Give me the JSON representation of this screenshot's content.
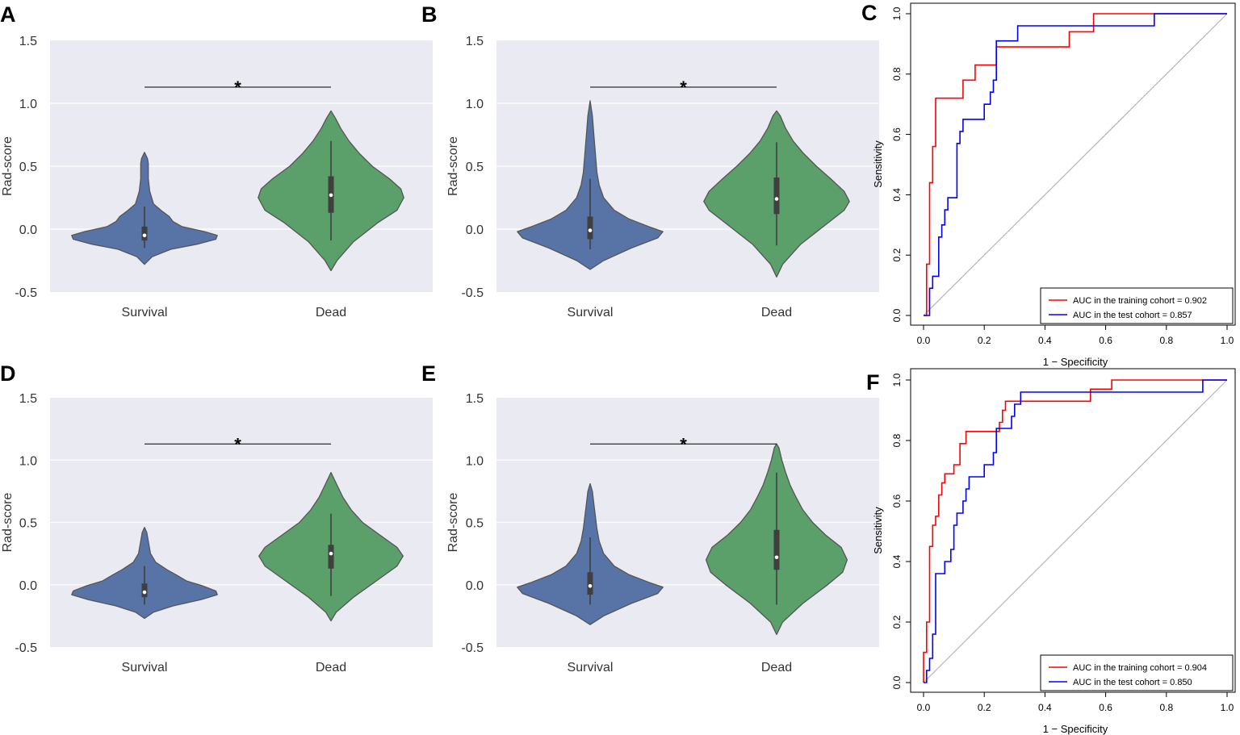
{
  "figure": {
    "violin_panels": [
      {
        "letter": "A",
        "ylabel": "Rad-score",
        "yticks": [
          "-0.5",
          "0.0",
          "0.5",
          "1.0",
          "1.5"
        ],
        "categories": [
          "Survival",
          "Dead"
        ],
        "significance": "*"
      },
      {
        "letter": "B",
        "ylabel": "Rad-score",
        "yticks": [
          "-0.5",
          "0.0",
          "0.5",
          "1.0",
          "1.5"
        ],
        "categories": [
          "Survival",
          "Dead"
        ],
        "significance": "*"
      },
      {
        "letter": "D",
        "ylabel": "Rad-score",
        "yticks": [
          "-0.5",
          "0.0",
          "0.5",
          "1.0",
          "1.5"
        ],
        "categories": [
          "Survival",
          "Dead"
        ],
        "significance": "*"
      },
      {
        "letter": "E",
        "ylabel": "Rad-score",
        "yticks": [
          "-0.5",
          "0.0",
          "0.5",
          "1.0",
          "1.5"
        ],
        "categories": [
          "Survival",
          "Dead"
        ],
        "significance": "*"
      }
    ],
    "roc_panels": [
      {
        "letter": "C",
        "xlabel": "1 − Specificity",
        "ylabel": "Sensitivity",
        "xticks": [
          "0.0",
          "0.2",
          "0.4",
          "0.6",
          "0.8",
          "1.0"
        ],
        "yticks": [
          "0.0",
          "0.2",
          "0.4",
          "0.6",
          "0.8",
          "1.0"
        ],
        "legend": [
          "AUC in the training cohort = 0.902",
          "AUC in the test cohort = 0.857"
        ]
      },
      {
        "letter": "F",
        "xlabel": "1 − Specificity",
        "ylabel": "Sensitivity",
        "xticks": [
          "0.0",
          "0.2",
          "0.4",
          "0.6",
          "0.8",
          "1.0"
        ],
        "yticks": [
          "0.0",
          "0.2",
          "0.4",
          "0.6",
          "0.8",
          "1.0"
        ],
        "legend": [
          "AUC in the training cohort = 0.904",
          "AUC in the test cohort = 0.850"
        ]
      }
    ]
  },
  "colors": {
    "survival": "#5874a7",
    "dead": "#5b9f6a",
    "violin_outline": "#555555",
    "panel_bg": "#eaeaf2",
    "training": "#ff0000",
    "test": "#0000ff",
    "diagonal": "#b4b4b4"
  },
  "chart_data": [
    {
      "panel": "A",
      "type": "violin",
      "ylabel": "Rad-score",
      "ylim": [
        -0.5,
        1.5
      ],
      "categories": [
        "Survival",
        "Dead"
      ],
      "violins": [
        {
          "name": "Survival",
          "profile": [
            [
              -0.28,
              0.0
            ],
            [
              -0.22,
              0.1
            ],
            [
              -0.16,
              0.35
            ],
            [
              -0.12,
              0.7
            ],
            [
              -0.08,
              0.95
            ],
            [
              -0.05,
              0.97
            ],
            [
              -0.02,
              0.8
            ],
            [
              0.02,
              0.5
            ],
            [
              0.06,
              0.38
            ],
            [
              0.1,
              0.33
            ],
            [
              0.14,
              0.24
            ],
            [
              0.2,
              0.12
            ],
            [
              0.3,
              0.07
            ],
            [
              0.4,
              0.05
            ],
            [
              0.48,
              0.05
            ],
            [
              0.52,
              0.05
            ],
            [
              0.56,
              0.04
            ],
            [
              0.61,
              0.0
            ]
          ],
          "box": {
            "q1": -0.09,
            "q3": 0.02,
            "median": -0.05,
            "whisker_low": -0.15,
            "whisker_high": 0.18
          }
        },
        {
          "name": "Dead",
          "profile": [
            [
              -0.33,
              0.0
            ],
            [
              -0.25,
              0.08
            ],
            [
              -0.1,
              0.3
            ],
            [
              0.05,
              0.62
            ],
            [
              0.15,
              0.88
            ],
            [
              0.25,
              0.97
            ],
            [
              0.32,
              0.93
            ],
            [
              0.4,
              0.78
            ],
            [
              0.5,
              0.55
            ],
            [
              0.6,
              0.38
            ],
            [
              0.7,
              0.24
            ],
            [
              0.8,
              0.13
            ],
            [
              0.88,
              0.06
            ],
            [
              0.94,
              0.0
            ]
          ],
          "box": {
            "q1": 0.13,
            "q3": 0.42,
            "median": 0.27,
            "whisker_low": -0.09,
            "whisker_high": 0.7
          }
        }
      ],
      "significance": "*"
    },
    {
      "panel": "B",
      "type": "violin",
      "ylabel": "Rad-score",
      "ylim": [
        -0.5,
        1.5
      ],
      "categories": [
        "Survival",
        "Dead"
      ],
      "violins": [
        {
          "name": "Survival",
          "profile": [
            [
              -0.32,
              0.0
            ],
            [
              -0.25,
              0.18
            ],
            [
              -0.15,
              0.55
            ],
            [
              -0.07,
              0.9
            ],
            [
              -0.02,
              0.97
            ],
            [
              0.02,
              0.78
            ],
            [
              0.08,
              0.52
            ],
            [
              0.15,
              0.32
            ],
            [
              0.25,
              0.18
            ],
            [
              0.35,
              0.12
            ],
            [
              0.45,
              0.09
            ],
            [
              0.6,
              0.07
            ],
            [
              0.75,
              0.05
            ],
            [
              0.9,
              0.03
            ],
            [
              1.02,
              0.0
            ]
          ],
          "box": {
            "q1": -0.08,
            "q3": 0.1,
            "median": -0.01,
            "whisker_low": -0.16,
            "whisker_high": 0.4
          }
        },
        {
          "name": "Dead",
          "profile": [
            [
              -0.38,
              0.0
            ],
            [
              -0.28,
              0.08
            ],
            [
              -0.12,
              0.32
            ],
            [
              0.02,
              0.62
            ],
            [
              0.15,
              0.9
            ],
            [
              0.22,
              0.97
            ],
            [
              0.3,
              0.9
            ],
            [
              0.4,
              0.72
            ],
            [
              0.5,
              0.53
            ],
            [
              0.6,
              0.36
            ],
            [
              0.7,
              0.22
            ],
            [
              0.8,
              0.12
            ],
            [
              0.9,
              0.05
            ],
            [
              0.94,
              0.0
            ]
          ],
          "box": {
            "q1": 0.12,
            "q3": 0.41,
            "median": 0.24,
            "whisker_low": -0.13,
            "whisker_high": 0.69
          }
        }
      ],
      "significance": "*"
    },
    {
      "panel": "C",
      "type": "line",
      "title": "",
      "xlabel": "1 − Specificity",
      "ylabel": "Sensitivity",
      "xlim": [
        0,
        1
      ],
      "ylim": [
        0,
        1
      ],
      "series": [
        {
          "name": "AUC in the training cohort = 0.902",
          "x": [
            0,
            0.01,
            0.01,
            0.02,
            0.02,
            0.03,
            0.03,
            0.04,
            0.04,
            0.09,
            0.09,
            0.13,
            0.13,
            0.17,
            0.17,
            0.21,
            0.21,
            0.24,
            0.24,
            0.48,
            0.48,
            0.56,
            0.56,
            1.0
          ],
          "y": [
            0,
            0,
            0.17,
            0.17,
            0.44,
            0.44,
            0.56,
            0.56,
            0.72,
            0.72,
            0.72,
            0.72,
            0.78,
            0.78,
            0.83,
            0.83,
            0.83,
            0.83,
            0.89,
            0.89,
            0.94,
            0.94,
            1.0,
            1.0
          ]
        },
        {
          "name": "AUC in the test cohort = 0.857",
          "x": [
            0,
            0.02,
            0.02,
            0.03,
            0.03,
            0.05,
            0.05,
            0.06,
            0.06,
            0.07,
            0.07,
            0.08,
            0.08,
            0.11,
            0.11,
            0.12,
            0.12,
            0.13,
            0.13,
            0.15,
            0.15,
            0.2,
            0.2,
            0.22,
            0.22,
            0.23,
            0.23,
            0.24,
            0.24,
            0.31,
            0.31,
            0.76,
            0.76,
            1.0
          ],
          "y": [
            0,
            0,
            0.09,
            0.09,
            0.13,
            0.13,
            0.26,
            0.26,
            0.3,
            0.3,
            0.35,
            0.35,
            0.39,
            0.39,
            0.57,
            0.57,
            0.61,
            0.61,
            0.65,
            0.65,
            0.65,
            0.65,
            0.7,
            0.7,
            0.74,
            0.74,
            0.78,
            0.78,
            0.91,
            0.91,
            0.96,
            0.96,
            1.0,
            1.0
          ]
        }
      ],
      "diagonal": true
    },
    {
      "panel": "D",
      "type": "violin",
      "ylabel": "Rad-score",
      "ylim": [
        -0.5,
        1.5
      ],
      "categories": [
        "Survival",
        "Dead"
      ],
      "violins": [
        {
          "name": "Survival",
          "profile": [
            [
              -0.27,
              0.0
            ],
            [
              -0.22,
              0.12
            ],
            [
              -0.17,
              0.38
            ],
            [
              -0.12,
              0.75
            ],
            [
              -0.08,
              0.97
            ],
            [
              -0.05,
              0.95
            ],
            [
              -0.01,
              0.78
            ],
            [
              0.03,
              0.56
            ],
            [
              0.08,
              0.42
            ],
            [
              0.12,
              0.3
            ],
            [
              0.18,
              0.15
            ],
            [
              0.25,
              0.08
            ],
            [
              0.35,
              0.05
            ],
            [
              0.42,
              0.03
            ],
            [
              0.46,
              0.0
            ]
          ],
          "box": {
            "q1": -0.1,
            "q3": 0.01,
            "median": -0.06,
            "whisker_low": -0.16,
            "whisker_high": 0.15
          }
        },
        {
          "name": "Dead",
          "profile": [
            [
              -0.29,
              0.0
            ],
            [
              -0.22,
              0.07
            ],
            [
              -0.1,
              0.3
            ],
            [
              0.05,
              0.65
            ],
            [
              0.15,
              0.88
            ],
            [
              0.23,
              0.96
            ],
            [
              0.3,
              0.88
            ],
            [
              0.4,
              0.65
            ],
            [
              0.5,
              0.42
            ],
            [
              0.6,
              0.27
            ],
            [
              0.7,
              0.16
            ],
            [
              0.8,
              0.08
            ],
            [
              0.9,
              0.0
            ]
          ],
          "box": {
            "q1": 0.13,
            "q3": 0.32,
            "median": 0.25,
            "whisker_low": -0.09,
            "whisker_high": 0.57
          }
        }
      ],
      "significance": "*"
    },
    {
      "panel": "E",
      "type": "violin",
      "ylabel": "Rad-score",
      "ylim": [
        -0.5,
        1.5
      ],
      "categories": [
        "Survival",
        "Dead"
      ],
      "violins": [
        {
          "name": "Survival",
          "profile": [
            [
              -0.32,
              0.0
            ],
            [
              -0.25,
              0.18
            ],
            [
              -0.15,
              0.55
            ],
            [
              -0.07,
              0.9
            ],
            [
              -0.02,
              0.97
            ],
            [
              0.02,
              0.78
            ],
            [
              0.08,
              0.52
            ],
            [
              0.15,
              0.32
            ],
            [
              0.25,
              0.18
            ],
            [
              0.35,
              0.12
            ],
            [
              0.45,
              0.09
            ],
            [
              0.55,
              0.07
            ],
            [
              0.65,
              0.05
            ],
            [
              0.75,
              0.03
            ],
            [
              0.81,
              0.0
            ]
          ],
          "box": {
            "q1": -0.08,
            "q3": 0.1,
            "median": -0.01,
            "whisker_low": -0.16,
            "whisker_high": 0.38
          }
        },
        {
          "name": "Dead",
          "profile": [
            [
              -0.4,
              0.0
            ],
            [
              -0.3,
              0.08
            ],
            [
              -0.15,
              0.35
            ],
            [
              0.0,
              0.68
            ],
            [
              0.1,
              0.88
            ],
            [
              0.2,
              0.94
            ],
            [
              0.3,
              0.86
            ],
            [
              0.4,
              0.65
            ],
            [
              0.5,
              0.48
            ],
            [
              0.6,
              0.35
            ],
            [
              0.7,
              0.26
            ],
            [
              0.8,
              0.18
            ],
            [
              0.9,
              0.12
            ],
            [
              1.0,
              0.07
            ],
            [
              1.1,
              0.03
            ],
            [
              1.13,
              0.0
            ]
          ],
          "box": {
            "q1": 0.12,
            "q3": 0.44,
            "median": 0.22,
            "whisker_low": -0.16,
            "whisker_high": 0.9
          }
        }
      ],
      "significance": "*"
    },
    {
      "panel": "F",
      "type": "line",
      "title": "",
      "xlabel": "1 − Specificity",
      "ylabel": "Sensitivity",
      "xlim": [
        0,
        1
      ],
      "ylim": [
        0,
        1
      ],
      "series": [
        {
          "name": "AUC in the training cohort = 0.904",
          "x": [
            0,
            0,
            0.01,
            0.01,
            0.02,
            0.02,
            0.03,
            0.03,
            0.04,
            0.04,
            0.05,
            0.05,
            0.06,
            0.06,
            0.07,
            0.07,
            0.09,
            0.09,
            0.1,
            0.1,
            0.12,
            0.12,
            0.14,
            0.14,
            0.25,
            0.25,
            0.26,
            0.26,
            0.27,
            0.27,
            0.28,
            0.28,
            0.55,
            0.55,
            0.62,
            0.62,
            1.0
          ],
          "y": [
            0,
            0.1,
            0.1,
            0.2,
            0.2,
            0.45,
            0.45,
            0.52,
            0.52,
            0.55,
            0.55,
            0.62,
            0.62,
            0.66,
            0.66,
            0.69,
            0.69,
            0.69,
            0.69,
            0.72,
            0.72,
            0.79,
            0.79,
            0.83,
            0.83,
            0.86,
            0.86,
            0.9,
            0.9,
            0.93,
            0.93,
            0.93,
            0.93,
            0.97,
            0.97,
            1.0,
            1.0
          ]
        },
        {
          "name": "AUC in the test cohort = 0.850",
          "x": [
            0,
            0.01,
            0.01,
            0.02,
            0.02,
            0.03,
            0.03,
            0.04,
            0.04,
            0.07,
            0.07,
            0.09,
            0.09,
            0.1,
            0.1,
            0.11,
            0.11,
            0.13,
            0.13,
            0.14,
            0.14,
            0.15,
            0.15,
            0.2,
            0.2,
            0.23,
            0.23,
            0.24,
            0.24,
            0.29,
            0.29,
            0.3,
            0.3,
            0.31,
            0.31,
            0.32,
            0.32,
            0.92,
            0.92,
            1.0
          ],
          "y": [
            0,
            0,
            0.04,
            0.04,
            0.08,
            0.08,
            0.16,
            0.16,
            0.36,
            0.36,
            0.4,
            0.4,
            0.44,
            0.44,
            0.52,
            0.52,
            0.56,
            0.56,
            0.6,
            0.6,
            0.64,
            0.64,
            0.68,
            0.68,
            0.72,
            0.72,
            0.76,
            0.76,
            0.84,
            0.84,
            0.88,
            0.88,
            0.92,
            0.92,
            0.92,
            0.92,
            0.96,
            0.96,
            1.0,
            1.0
          ]
        }
      ],
      "diagonal": true
    }
  ]
}
